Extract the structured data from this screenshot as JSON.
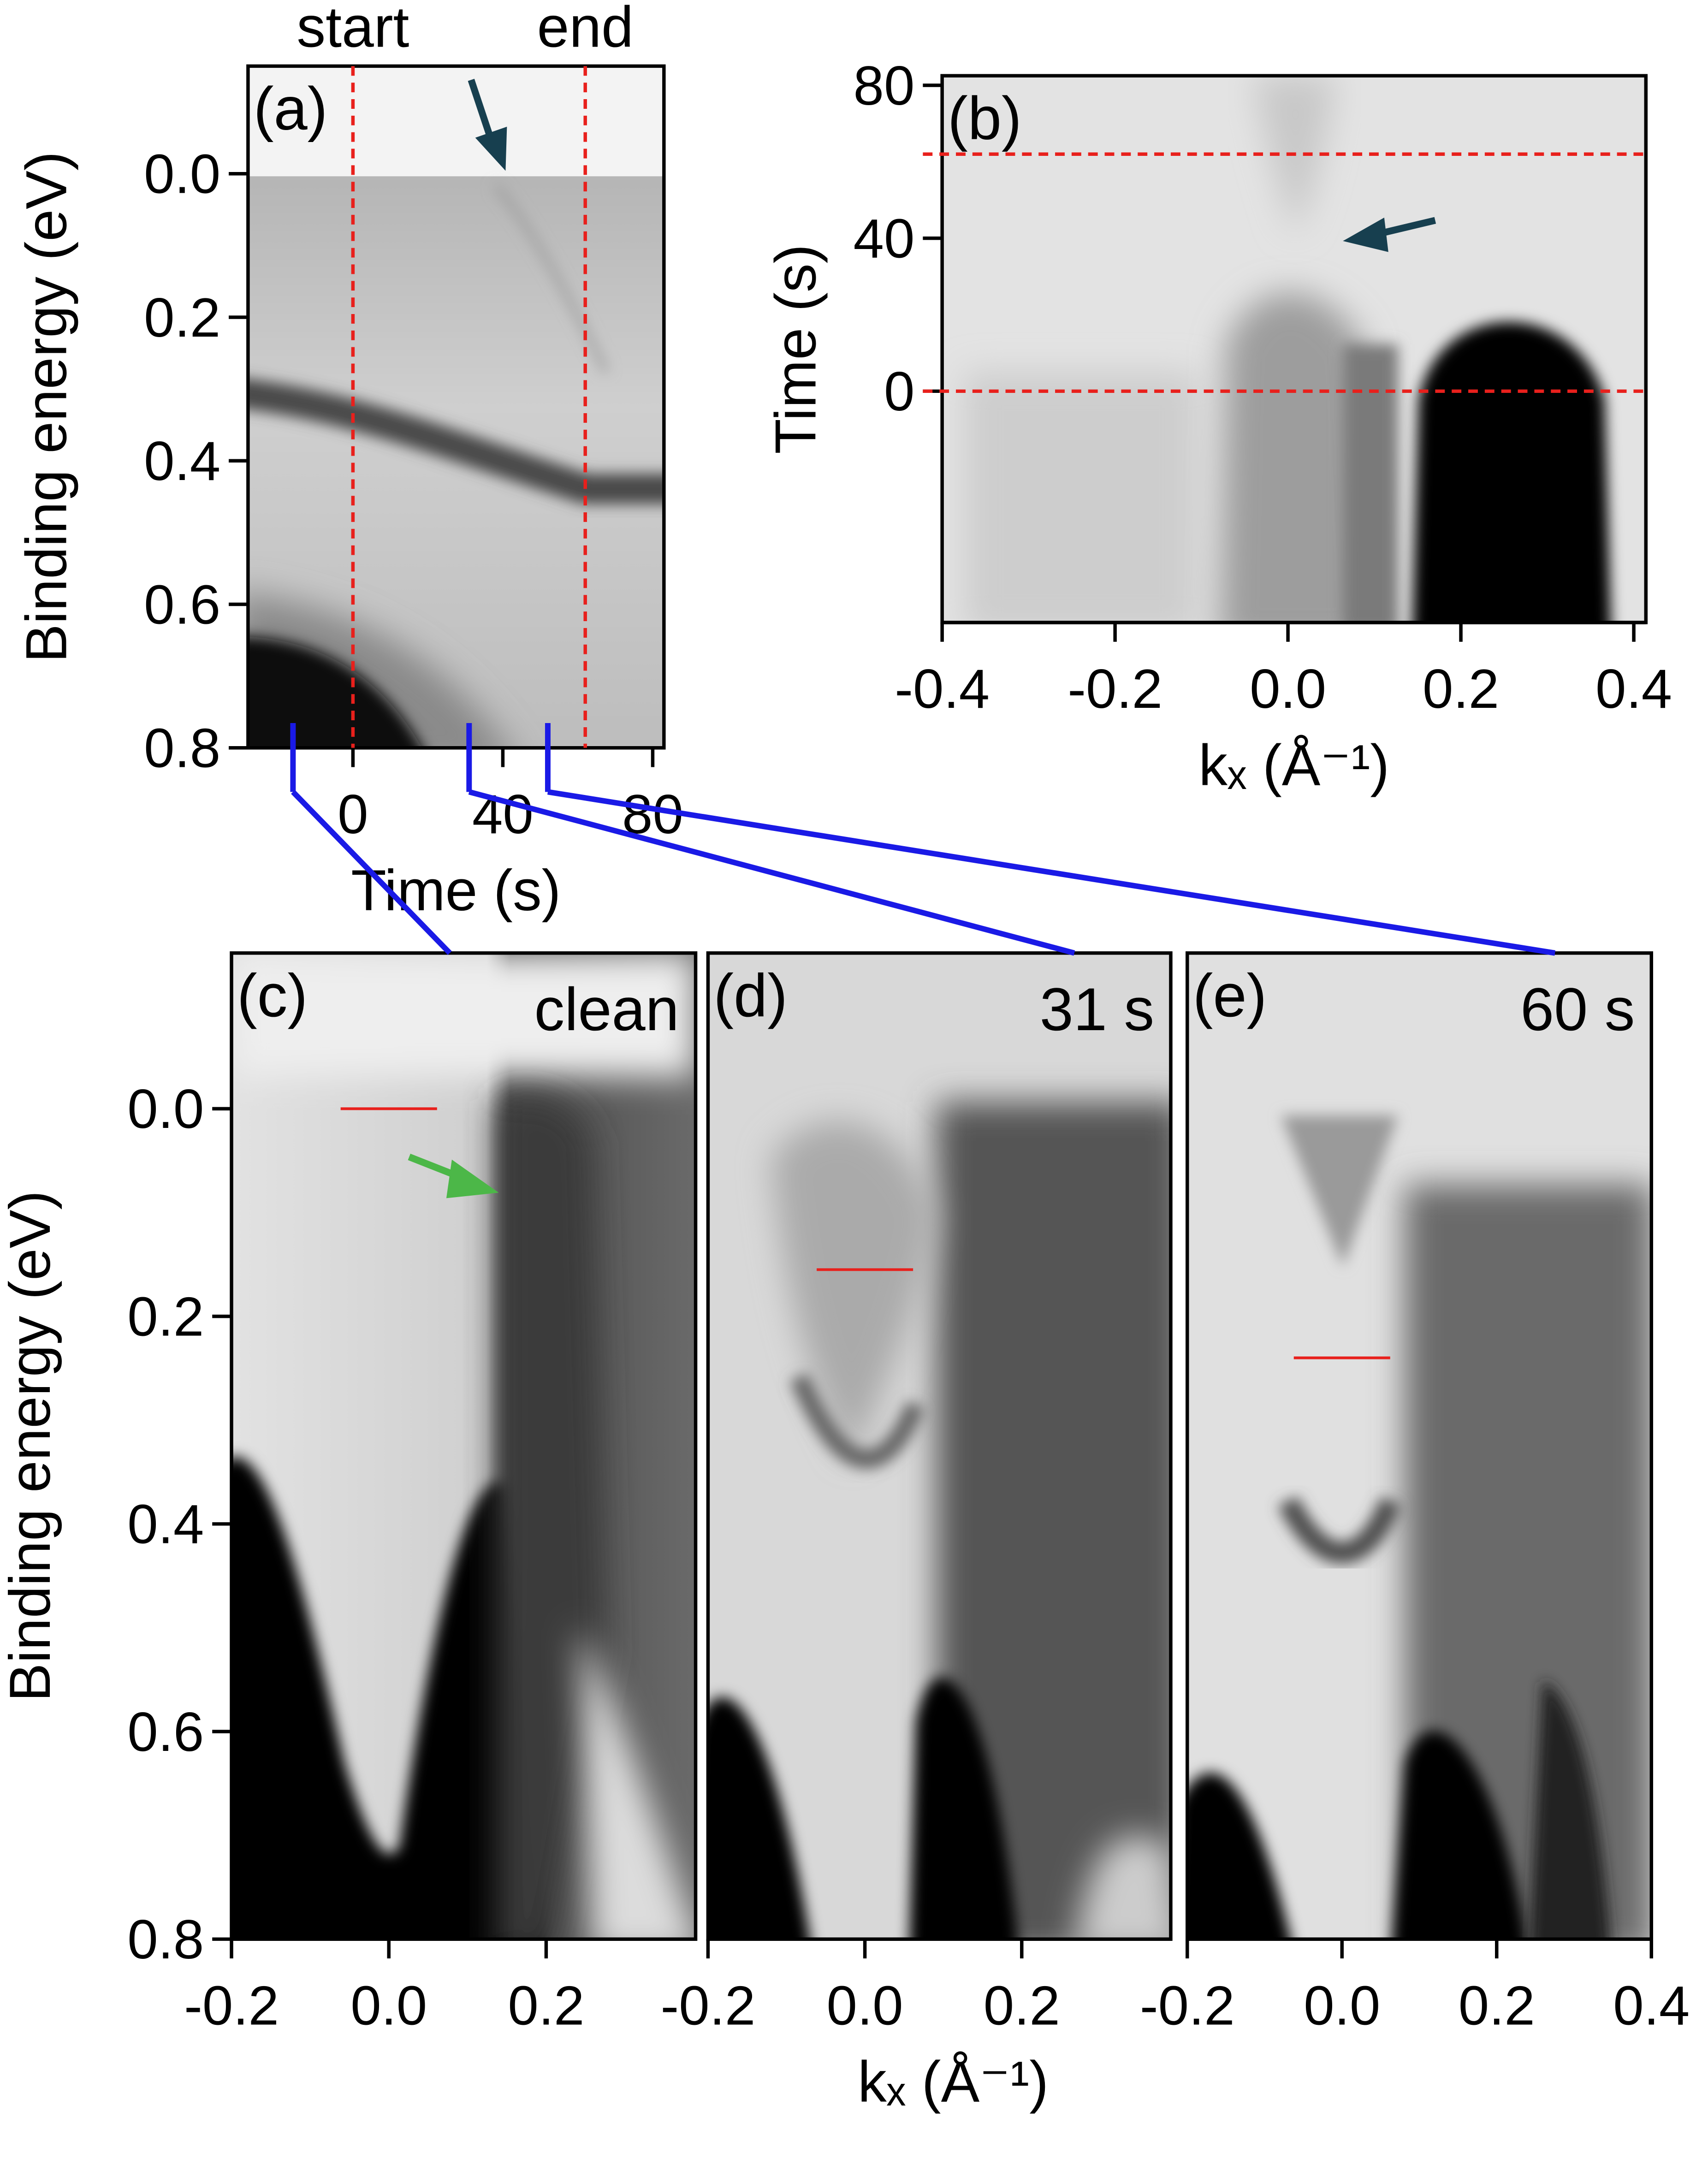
{
  "chart_data": [
    {
      "type": "image",
      "panel_label": "(a)",
      "xlabel": "Time (s)",
      "ylabel": "Binding energy (eV)",
      "xlim": [
        -28,
        83
      ],
      "xticks": [
        0,
        40,
        80
      ],
      "ylim": [
        -0.15,
        0.8
      ],
      "y_inverted": true,
      "yticks": [
        {
          "value": 0,
          "label": "0.0"
        },
        0.2,
        0.4,
        0.6,
        0.8
      ],
      "vlines": [
        {
          "x": 0,
          "label": "start"
        },
        {
          "x": 62,
          "label": "end"
        }
      ],
      "vline_color": "#e8201c",
      "snapshot_times": [
        -16,
        31,
        52
      ],
      "snapshot_color": "#1a1ae6"
    },
    {
      "type": "image",
      "panel_label": "(b)",
      "xlabel": "kₓ (Å⁻¹)",
      "ylabel": "Time (s)",
      "xlim": [
        -0.4,
        0.414
      ],
      "xticks": [
        -0.4,
        -0.2,
        {
          "value": 0,
          "label": "0.0"
        },
        0.2,
        0.4
      ],
      "ylim": [
        -60.5,
        82.5
      ],
      "yticks": [
        0,
        40,
        80
      ],
      "hlines": [
        0,
        62
      ],
      "hline_color": "#e8201c"
    },
    {
      "type": "image",
      "panel_label": "(c)",
      "tag": "clean",
      "ylabel": "Binding energy (eV)",
      "xlim": [
        -0.2,
        0.39
      ],
      "xticks": [
        -0.2,
        {
          "value": 0,
          "label": "0.0"
        },
        0.2
      ],
      "ylim": [
        -0.15,
        0.8
      ],
      "y_inverted": true,
      "yticks": [
        {
          "value": 0,
          "label": "0.0"
        },
        0.2,
        0.4,
        0.6,
        0.8
      ],
      "marker_energy": 0.0,
      "marker_color": "#e8201c"
    },
    {
      "type": "image",
      "panel_label": "(d)",
      "tag": "31 s",
      "xlabel": "kₓ (Å⁻¹)",
      "xlim": [
        -0.2,
        0.39
      ],
      "xticks": [
        -0.2,
        {
          "value": 0,
          "label": "0.0"
        },
        0.2
      ],
      "ylim": [
        -0.15,
        0.8
      ],
      "y_inverted": true,
      "marker_energy": 0.155,
      "marker_color": "#e8201c"
    },
    {
      "type": "image",
      "panel_label": "(e)",
      "tag": "60 s",
      "xlim": [
        -0.2,
        0.4
      ],
      "xticks": [
        -0.2,
        {
          "value": 0,
          "label": "0.0"
        },
        0.2,
        0.4
      ],
      "ylim": [
        -0.15,
        0.8
      ],
      "y_inverted": true,
      "marker_energy": 0.24,
      "marker_color": "#e8201c"
    }
  ]
}
